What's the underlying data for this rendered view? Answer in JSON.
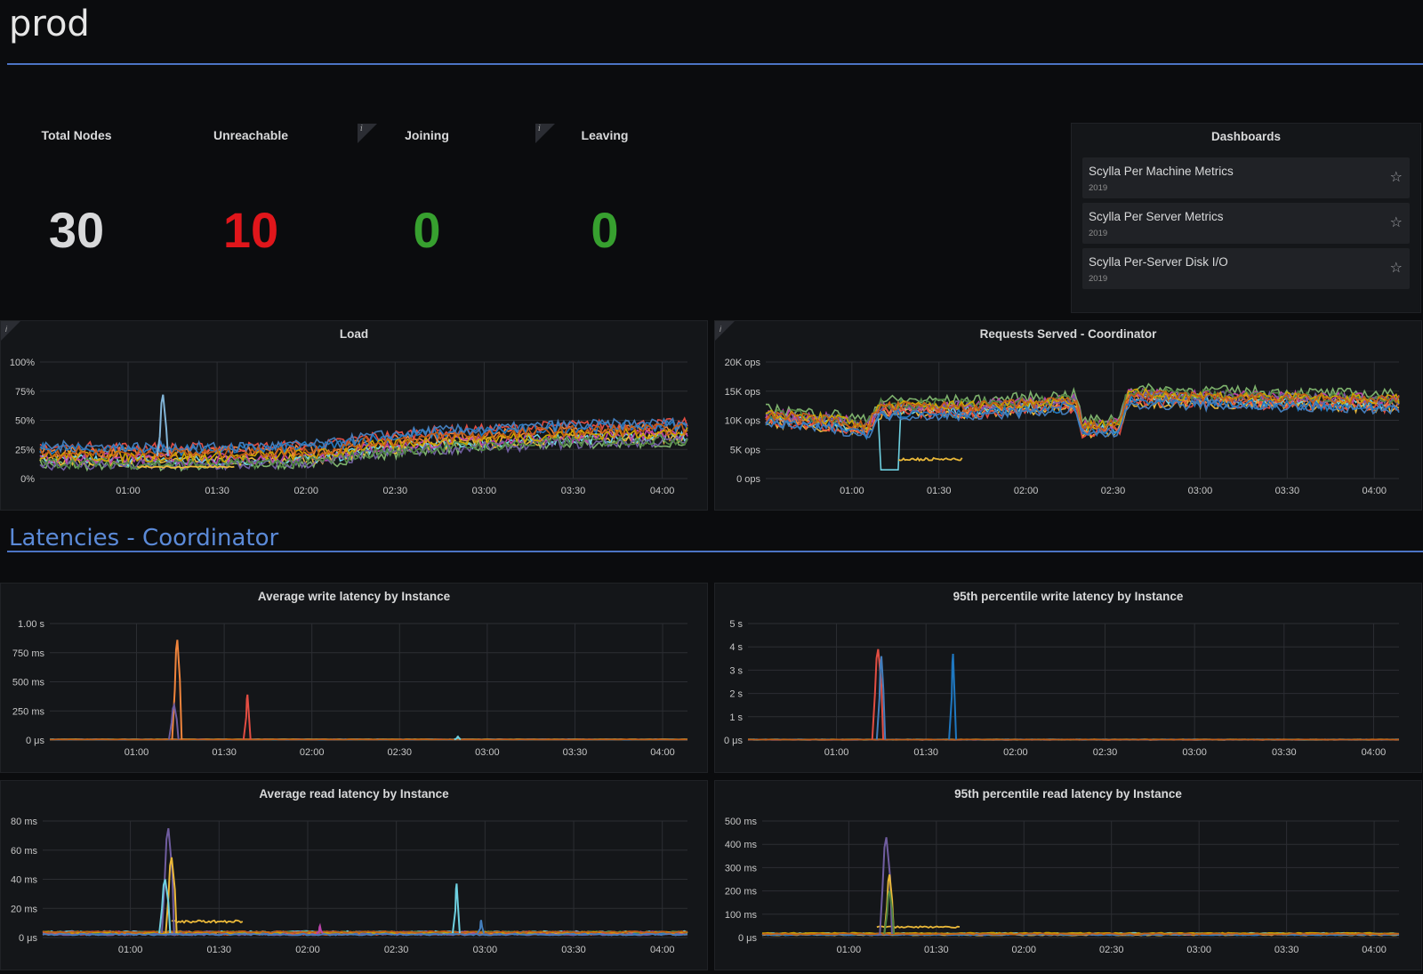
{
  "header": {
    "title": "prod"
  },
  "stats": [
    {
      "label": "Total Nodes",
      "value": "30",
      "color": "#d8d9da"
    },
    {
      "label": "Unreachable",
      "value": "10",
      "color": "#e0161b"
    },
    {
      "label": "Joining",
      "value": "0",
      "color": "#37a02f"
    },
    {
      "label": "Leaving",
      "value": "0",
      "color": "#37a02f"
    }
  ],
  "dashboards": {
    "title": "Dashboards",
    "items": [
      {
        "name": "Scylla Per Machine Metrics",
        "year": "2019"
      },
      {
        "name": "Scylla Per Server Metrics",
        "year": "2019"
      },
      {
        "name": "Scylla Per-Server Disk I/O",
        "year": "2019"
      }
    ]
  },
  "section": {
    "title": "Latencies - Coordinator"
  },
  "info_glyph": "i",
  "star_glyph": "☆",
  "series_colors": [
    "#7eb26d",
    "#eab839",
    "#6ed0e0",
    "#ef843c",
    "#e24d42",
    "#1f78c1",
    "#ba43a9",
    "#705da0",
    "#508642",
    "#cca300",
    "#447ebc",
    "#c15c17",
    "#f9ba8f",
    "#82b5d8",
    "#e5a8e2"
  ],
  "x_ticks": [
    "01:00",
    "01:30",
    "02:00",
    "02:30",
    "03:00",
    "03:30",
    "04:00"
  ],
  "chart_data": [
    {
      "type": "line",
      "title": "Load",
      "y_ticks": [
        "100%",
        "75%",
        "50%",
        "25%",
        "0%"
      ],
      "ylim": [
        0,
        100
      ],
      "unit": "%",
      "baseline": [
        [
          0.0,
          20
        ],
        [
          0.25,
          19
        ],
        [
          0.35,
          20
        ],
        [
          0.45,
          22
        ],
        [
          0.5,
          28
        ],
        [
          0.55,
          30
        ],
        [
          0.6,
          33
        ],
        [
          0.7,
          35
        ],
        [
          0.8,
          38
        ],
        [
          1.0,
          40
        ]
      ],
      "band": 16,
      "spikes": [
        {
          "at": 0.19,
          "height": 72,
          "width": 0.01,
          "color": "#82b5d8"
        }
      ],
      "low": [
        {
          "from": 0.15,
          "to": 0.3,
          "value": 10,
          "color": "#eab839"
        }
      ]
    },
    {
      "type": "line",
      "title": "Requests Served - Coordinator",
      "y_ticks": [
        "20K ops",
        "15K ops",
        "10K ops",
        "5K ops",
        "0 ops"
      ],
      "ylim": [
        0,
        20000
      ],
      "unit": "ops",
      "baseline": [
        [
          0.0,
          10500
        ],
        [
          0.12,
          9500
        ],
        [
          0.16,
          8500
        ],
        [
          0.18,
          12000
        ],
        [
          0.33,
          12000
        ],
        [
          0.49,
          13000
        ],
        [
          0.5,
          8500
        ],
        [
          0.56,
          9000
        ],
        [
          0.57,
          14000
        ],
        [
          1.0,
          13000
        ]
      ],
      "band": 3000,
      "drop": [
        {
          "from": 0.18,
          "to": 0.21,
          "value": 1500,
          "color": "#6ed0e0"
        }
      ],
      "low": [
        {
          "from": 0.21,
          "to": 0.31,
          "value": 3300,
          "color": "#eab839"
        }
      ]
    },
    {
      "type": "line",
      "title": "Average write latency by Instance",
      "y_ticks": [
        "1.00 s",
        "750 ms",
        "500 ms",
        "250 ms",
        "0 μs"
      ],
      "ylim": [
        0,
        1000
      ],
      "unit": "ms",
      "baseline": [
        [
          0,
          5
        ],
        [
          1,
          5
        ]
      ],
      "band": 4,
      "spikes": [
        {
          "at": 0.2,
          "height": 860,
          "width": 0.008,
          "color": "#ef843c"
        },
        {
          "at": 0.195,
          "height": 300,
          "width": 0.008,
          "color": "#705da0"
        },
        {
          "at": 0.31,
          "height": 390,
          "width": 0.004,
          "color": "#e24d42"
        },
        {
          "at": 0.64,
          "height": 30,
          "width": 0.003,
          "color": "#6ed0e0"
        }
      ]
    },
    {
      "type": "line",
      "title": "95th percentile write latency by Instance",
      "y_ticks": [
        "5 s",
        "4 s",
        "3 s",
        "2 s",
        "1 s",
        "0 μs"
      ],
      "ylim": [
        0,
        5
      ],
      "unit": "s",
      "baseline": [
        [
          0,
          0.02
        ],
        [
          1,
          0.02
        ]
      ],
      "band": 0.02,
      "spikes": [
        {
          "at": 0.2,
          "height": 3.9,
          "width": 0.01,
          "color": "#e24d42"
        },
        {
          "at": 0.205,
          "height": 3.6,
          "width": 0.006,
          "color": "#447ebc"
        },
        {
          "at": 0.315,
          "height": 3.7,
          "width": 0.004,
          "color": "#1f78c1"
        }
      ]
    },
    {
      "type": "line",
      "title": "Average read latency by Instance",
      "y_ticks": [
        "80 ms",
        "60 ms",
        "40 ms",
        "20 ms",
        "0 μs"
      ],
      "ylim": [
        0,
        80
      ],
      "unit": "ms",
      "baseline": [
        [
          0,
          3
        ],
        [
          1,
          3
        ]
      ],
      "band": 2,
      "spikes": [
        {
          "at": 0.195,
          "height": 75,
          "width": 0.012,
          "color": "#705da0"
        },
        {
          "at": 0.2,
          "height": 55,
          "width": 0.01,
          "color": "#eab839"
        },
        {
          "at": 0.19,
          "height": 40,
          "width": 0.01,
          "color": "#6ed0e0"
        },
        {
          "at": 0.642,
          "height": 37,
          "width": 0.004,
          "color": "#6ed0e0"
        },
        {
          "at": 0.68,
          "height": 12,
          "width": 0.003,
          "color": "#447ebc"
        },
        {
          "at": 0.43,
          "height": 8,
          "width": 0.003,
          "color": "#ba43a9"
        }
      ],
      "low": [
        {
          "from": 0.2,
          "to": 0.31,
          "value": 11,
          "color": "#eab839"
        }
      ]
    },
    {
      "type": "line",
      "title": "95th percentile read latency by Instance",
      "y_ticks": [
        "500 ms",
        "400 ms",
        "300 ms",
        "200 ms",
        "100 ms",
        "0 μs"
      ],
      "ylim": [
        0,
        500
      ],
      "unit": "ms",
      "baseline": [
        [
          0,
          15
        ],
        [
          1,
          15
        ]
      ],
      "band": 8,
      "spikes": [
        {
          "at": 0.195,
          "height": 430,
          "width": 0.012,
          "color": "#705da0"
        },
        {
          "at": 0.2,
          "height": 270,
          "width": 0.008,
          "color": "#eab839"
        },
        {
          "at": 0.2,
          "height": 200,
          "width": 0.008,
          "color": "#508642"
        }
      ],
      "low": [
        {
          "from": 0.18,
          "to": 0.31,
          "value": 45,
          "color": "#eab839"
        }
      ]
    }
  ]
}
